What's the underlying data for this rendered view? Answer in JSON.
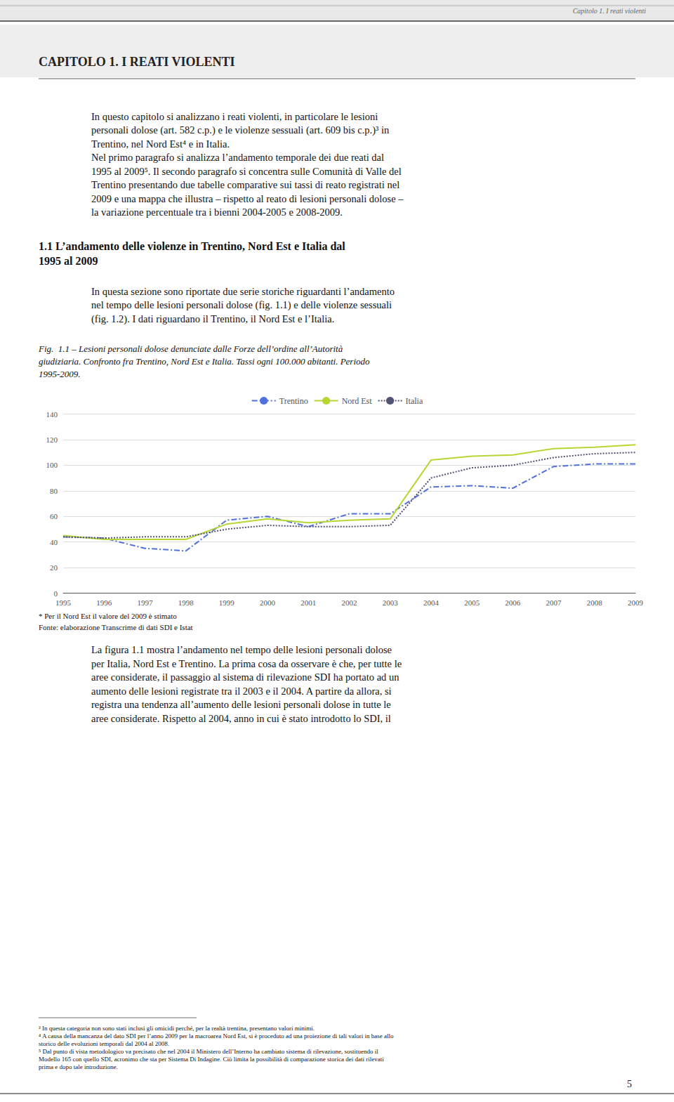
{
  "chart_data": {
    "type": "line",
    "title": [
      "Fig.  1.1 – Lesioni personali dolose denunciate dalle Forze dell’ordine all’Autorità",
      "giudiziaria. Confronto fra Trentino, Nord Est e Italia. Tassi ogni 100.000 abitanti. Periodo",
      "1995-2009."
    ],
    "annotations": [
      [
        "Capitolo 1. I reati violenti"
      ],
      [
        "CAPITOLO 1. I REATI VIOLENTI"
      ],
      [
        "In questo capitolo si analizzano i reati violenti, in particolare le lesioni",
        "personali dolose (art. 582 c.p.) e le violenze sessuali (art. 609 bis c.p.)³ in",
        "Trentino, nel Nord Est⁴ e in Italia.",
        "Nel primo paragrafo si analizza l’andamento temporale dei due reati dal",
        "1995 al 2009⁵. Il secondo paragrafo si concentra sulle Comunità di Valle del",
        "Trentino presentando due tabelle comparative sui tassi di reato registrati nel",
        "2009 e una mappa che illustra – rispetto al reato di lesioni personali dolose –",
        "la variazione percentuale tra i bienni 2004-2005 e 2008-2009."
      ],
      [
        "1.1 L’andamento delle violenze in Trentino, Nord Est e Italia dal",
        "1995 al 2009"
      ],
      [
        "In questa sezione sono riportate due serie storiche riguardanti l’andamento",
        "nel tempo delle lesioni personali dolose (fig. 1.1) e delle violenze sessuali",
        "(fig. 1.2). I dati riguardano il Trentino, il Nord Est e l’Italia."
      ],
      [
        "* Per il Nord Est il valore del 2009 è stimato",
        "Fonte: elaborazione Transcrime di dati SDI e Istat"
      ],
      [
        "La figura 1.1 mostra l’andamento nel tempo delle lesioni personali dolose",
        "per Italia, Nord Est e Trentino. La prima cosa da osservare è che, per tutte le",
        "aree considerate, il passaggio al sistema di rilevazione SDI ha portato ad un",
        "aumento delle lesioni registrate tra il 2003 e il 2004. A partire da allora, si",
        "registra una tendenza all’aumento delle lesioni personali dolose in tutte le",
        "aree considerate. Rispetto al 2004, anno in cui è stato introdotto lo SDI, il"
      ],
      [
        "³ In questa categoria non sono stati inclusi gli omicidi perché, per la realtà trentina, presentano valori minimi.",
        "⁴ A causa della mancanza del dato SDI per l’anno 2009 per la macroarea Nord Est, si è proceduto ad una proiezione di tali valori in base allo",
        "storico delle evoluzioni temporali dal 2004 al 2008.",
        "⁵ Dal punto di vista metodologico va precisato che nel 2004 il Ministero dell’Interno ha cambiato sistema di rilevazione, sostituendo il",
        "Modello 165 con quello SDI, acronimo che sta per Sistema Di Indagine. Ciò limita la possibilità di comparazione storica dei dati rilevati",
        "prima e dopo tale introduzione."
      ],
      [
        "5"
      ]
    ],
    "categories": [
      "1995",
      "1996",
      "1997",
      "1998",
      "1999",
      "2000",
      "2001",
      "2002",
      "2003",
      "2004",
      "2005",
      "2006",
      "2007",
      "2008",
      "2009"
    ],
    "series": [
      {
        "name": "Trentino",
        "line_style": "dashdot",
        "values": [
          44,
          43,
          35,
          33,
          57,
          60,
          52,
          62,
          62,
          83,
          84,
          82,
          99,
          101,
          101
        ]
      },
      {
        "name": "Nord Est",
        "line_style": "solid",
        "values": [
          45,
          42,
          42,
          42,
          54,
          58,
          55,
          57,
          58,
          104,
          107,
          108,
          113,
          114,
          116
        ]
      },
      {
        "name": "Italia",
        "line_style": "dotted",
        "values": [
          44,
          43,
          44,
          44,
          50,
          53,
          52,
          52,
          53,
          90,
          98,
          100,
          106,
          109,
          110
        ]
      }
    ],
    "ylim": [
      0,
      140
    ],
    "yticks": [
      0,
      20,
      40,
      60,
      80,
      100,
      120,
      140
    ],
    "grid": true,
    "legend": "top"
  }
}
